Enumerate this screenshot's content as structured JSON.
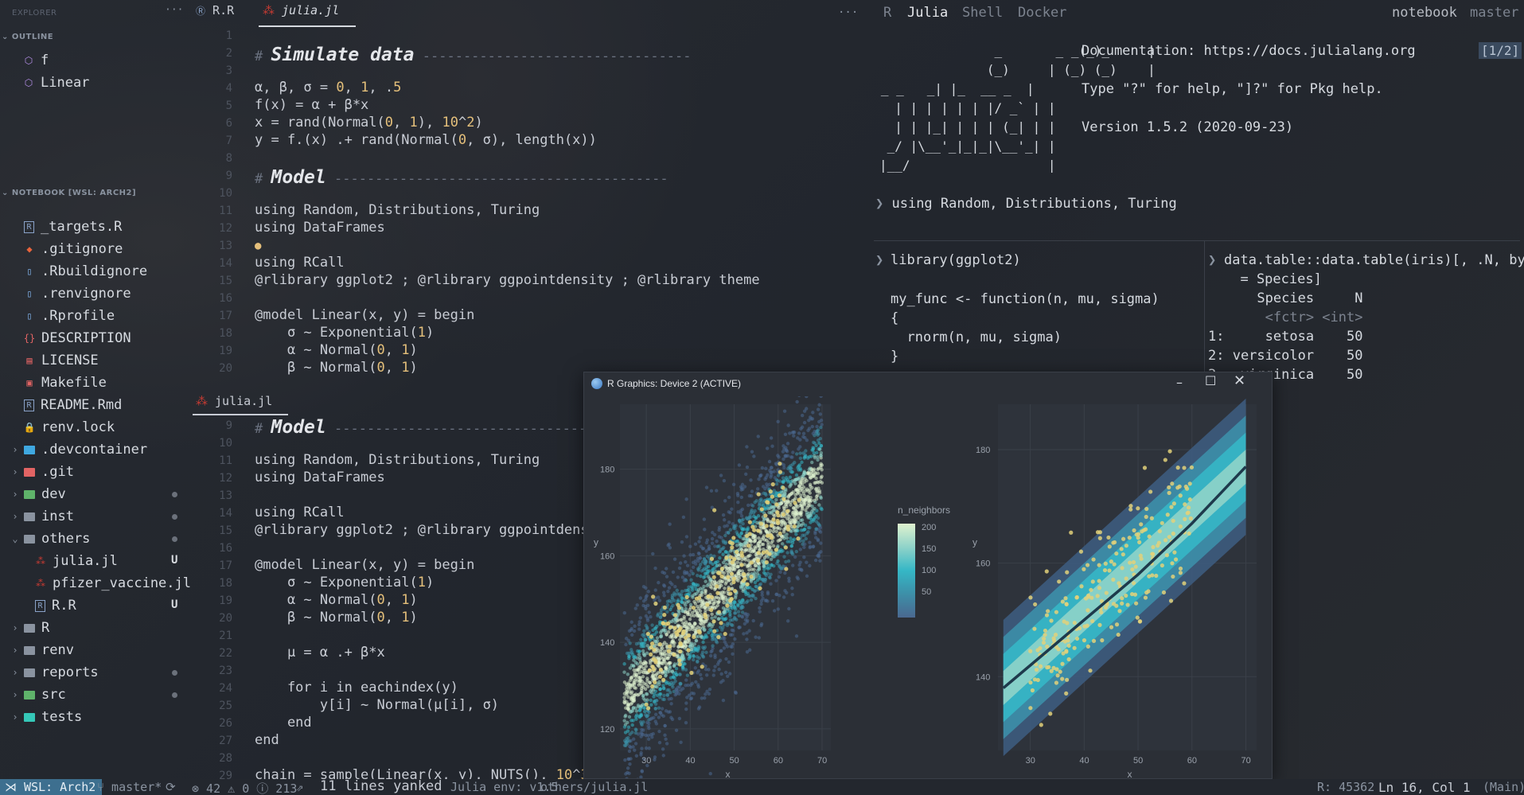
{
  "sidebar": {
    "explorer_label": "EXPLORER",
    "more": "···",
    "outline_label": "OUTLINE",
    "outline_items": [
      {
        "label": "f"
      },
      {
        "label": "Linear"
      }
    ],
    "notebook_label": "NOTEBOOK [WSL: ARCH2]",
    "files": [
      {
        "label": "_targets.R",
        "icon": "r-file-icon",
        "color": "#8aa3c9"
      },
      {
        "label": ".gitignore",
        "icon": "git-icon",
        "color": "#e8643c"
      },
      {
        "label": ".Rbuildignore",
        "icon": "file-icon",
        "color": "#7fb0e8"
      },
      {
        "label": ".renvignore",
        "icon": "file-icon",
        "color": "#7fb0e8"
      },
      {
        "label": ".Rprofile",
        "icon": "file-icon",
        "color": "#7fb0e8"
      },
      {
        "label": "DESCRIPTION",
        "icon": "braces-icon",
        "color": "#e26464"
      },
      {
        "label": "LICENSE",
        "icon": "license-icon",
        "color": "#e26464"
      },
      {
        "label": "Makefile",
        "icon": "makefile-icon",
        "color": "#e26464"
      },
      {
        "label": "README.Rmd",
        "icon": "r-file-icon",
        "color": "#8aa3c9"
      },
      {
        "label": "renv.lock",
        "icon": "lock-icon",
        "color": "#e5c07b"
      }
    ],
    "folders": [
      {
        "label": ".devcontainer",
        "color": "#3fa8e0",
        "dot": false
      },
      {
        "label": ".git",
        "color": "#e26464",
        "dot": false
      },
      {
        "label": "dev",
        "color": "#5fb36a",
        "dot": true
      },
      {
        "label": "inst",
        "color": "#8a93a0",
        "dot": true
      },
      {
        "label": "others",
        "color": "#8a93a0",
        "dot": true,
        "open": true
      }
    ],
    "others_children": [
      {
        "label": "julia.jl",
        "status": "U",
        "icon": "julia-icon"
      },
      {
        "label": "pfizer_vaccine.jl",
        "status": "",
        "icon": "julia-icon"
      },
      {
        "label": "R.R",
        "status": "U",
        "icon": "r-file-icon"
      }
    ],
    "folders2": [
      {
        "label": "R",
        "color": "#8a93a0",
        "dot": false
      },
      {
        "label": "renv",
        "color": "#8a93a0",
        "dot": false
      },
      {
        "label": "reports",
        "color": "#8a93a0",
        "dot": true
      },
      {
        "label": "src",
        "color": "#5fb36a",
        "dot": true
      },
      {
        "label": "tests",
        "color": "#35c8b8",
        "dot": false
      }
    ]
  },
  "editor": {
    "tabs": [
      {
        "label": "R.R"
      },
      {
        "label": "julia.jl"
      }
    ],
    "more": "···",
    "split_tab": "julia.jl"
  },
  "repl": {
    "tabs": [
      "R",
      "Julia",
      "Shell",
      "Docker"
    ],
    "right_tabs": [
      "notebook",
      "master"
    ],
    "banner": [
      "               _       _ _(_)_     |",
      "              (_)     | (_) (_)    |",
      "   _ _   _| |_  __ _  |",
      "  | | | | | | |/ _` | |",
      "  | | |_| | | | (_| | |",
      " _/ |\\__'_|_|_|\\__'_| |",
      "|__/                  |"
    ],
    "doc_line": "Documentation: https://docs.julialang.org",
    "help_line": "Type \"?\" for help, \"]?\" for Pkg help.",
    "version_line": "Version 1.5.2 (2020-09-23)",
    "page": "[1/2]",
    "using_line": "using Random, Distributions, Turing",
    "r_lines": [
      "library(ggplot2)",
      "my_func <- function(n, mu, sigma)",
      "{",
      "  rnorm(n, mu, sigma)",
      "}"
    ],
    "dt_lines": [
      "data.table::data.table(iris)[, .N, by",
      "  = Species]",
      "      Species     N",
      "       <fctr> <int>",
      "1:     setosa    50",
      "2: versicolor    50",
      "3:  virginica    50"
    ]
  },
  "graphics": {
    "title": "R Graphics: Device 2 (ACTIVE)",
    "legend_title": "n_neighbors",
    "legend_ticks": [
      "200",
      "150",
      "100",
      "50"
    ],
    "xlabel": "x",
    "ylabel": "y",
    "xticks": [
      "30",
      "40",
      "50",
      "60",
      "70"
    ],
    "yticks_left": [
      "180",
      "160",
      "140",
      "120"
    ],
    "yticks_right": [
      "180",
      "160",
      "140"
    ]
  },
  "chart_data": [
    {
      "type": "scatter",
      "xlabel": "x",
      "ylabel": "y",
      "xlim": [
        24,
        72
      ],
      "ylim": [
        115,
        195
      ],
      "legend": {
        "title": "n_neighbors",
        "ticks": [
          200,
          150,
          100,
          50
        ]
      }
    },
    {
      "type": "line",
      "xlabel": "x",
      "ylabel": "y",
      "xlim": [
        24,
        72
      ],
      "ylim": [
        127,
        188
      ],
      "series": [
        {
          "values": [
            [
              25,
              138
            ],
            [
              40,
              150
            ],
            [
              50,
              158
            ],
            [
              60,
              167
            ],
            [
              70,
              177
            ]
          ]
        }
      ]
    }
  ],
  "status": {
    "wsl": "WSL: Arch2",
    "branch": "master*",
    "errors": "⊗ 42 ⚠ 0 ⓘ 213",
    "yanked": "11 lines yanked",
    "julia_env": "Julia env: v1.5",
    "file": "others/julia.jl",
    "r_pid": "R: 45362",
    "position": "Ln 16, Col 1",
    "branch2": "(Main)"
  }
}
